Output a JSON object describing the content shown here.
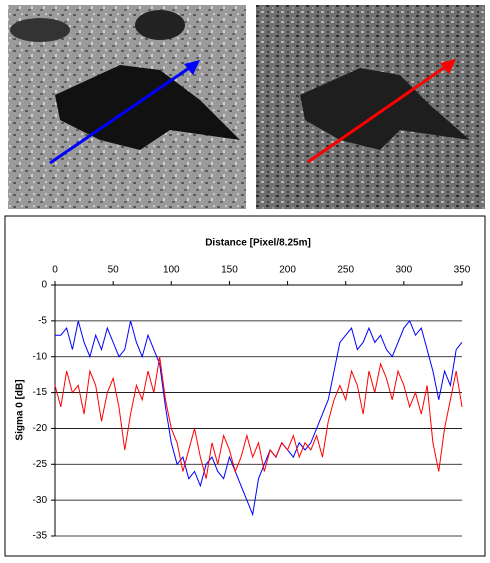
{
  "chart_data": {
    "type": "line",
    "xlabel": "Distance [Pixel/8.25m]",
    "ylabel": "Sigma 0 [dB]",
    "x": [
      0,
      5,
      10,
      15,
      20,
      25,
      30,
      35,
      40,
      45,
      50,
      55,
      60,
      65,
      70,
      75,
      80,
      85,
      90,
      95,
      100,
      105,
      110,
      115,
      120,
      125,
      130,
      135,
      140,
      145,
      150,
      155,
      160,
      165,
      170,
      175,
      180,
      185,
      190,
      195,
      200,
      205,
      210,
      215,
      220,
      225,
      230,
      235,
      240,
      245,
      250,
      255,
      260,
      265,
      270,
      275,
      280,
      285,
      290,
      295,
      300,
      305,
      310,
      315,
      320,
      325,
      330,
      335,
      340,
      345,
      350
    ],
    "series": [
      {
        "color": "#0000ff",
        "values": [
          -7,
          -7,
          -6,
          -9,
          -5,
          -8,
          -10,
          -7,
          -9,
          -6,
          -8,
          -10,
          -9,
          -5,
          -8,
          -10,
          -7,
          -9,
          -11,
          -17,
          -22,
          -25,
          -24,
          -27,
          -26,
          -28,
          -25,
          -24,
          -26,
          -27,
          -24,
          -26,
          -28,
          -30,
          -32,
          -27,
          -25,
          -23,
          -24,
          -22,
          -23,
          -24,
          -22,
          -23,
          -22,
          -20,
          -18,
          -16,
          -12,
          -8,
          -7,
          -6,
          -9,
          -8,
          -6,
          -8,
          -7,
          -9,
          -10,
          -8,
          -6,
          -5,
          -7,
          -6,
          -9,
          -12,
          -16,
          -12,
          -14,
          -9,
          -8
        ]
      },
      {
        "color": "#ff0000",
        "values": [
          -14,
          -17,
          -12,
          -15,
          -14,
          -18,
          -12,
          -14,
          -19,
          -15,
          -13,
          -17,
          -23,
          -18,
          -14,
          -16,
          -12,
          -15,
          -10,
          -16,
          -20,
          -22,
          -26,
          -23,
          -20,
          -24,
          -27,
          -22,
          -25,
          -21,
          -23,
          -26,
          -24,
          -21,
          -24,
          -22,
          -26,
          -23,
          -24,
          -22,
          -23,
          -21,
          -24,
          -22,
          -23,
          -21,
          -24,
          -19,
          -16,
          -14,
          -16,
          -12,
          -14,
          -18,
          -12,
          -15,
          -11,
          -13,
          -16,
          -12,
          -14,
          -17,
          -15,
          -18,
          -14,
          -22,
          -26,
          -20,
          -16,
          -12,
          -17
        ]
      }
    ],
    "xlim": [
      0,
      350
    ],
    "xticks": [
      0,
      50,
      100,
      150,
      200,
      250,
      300,
      350
    ],
    "ylim": [
      -35,
      0
    ],
    "yticks": [
      0,
      -5,
      -10,
      -15,
      -20,
      -25,
      -30,
      -35
    ],
    "grid": true
  }
}
